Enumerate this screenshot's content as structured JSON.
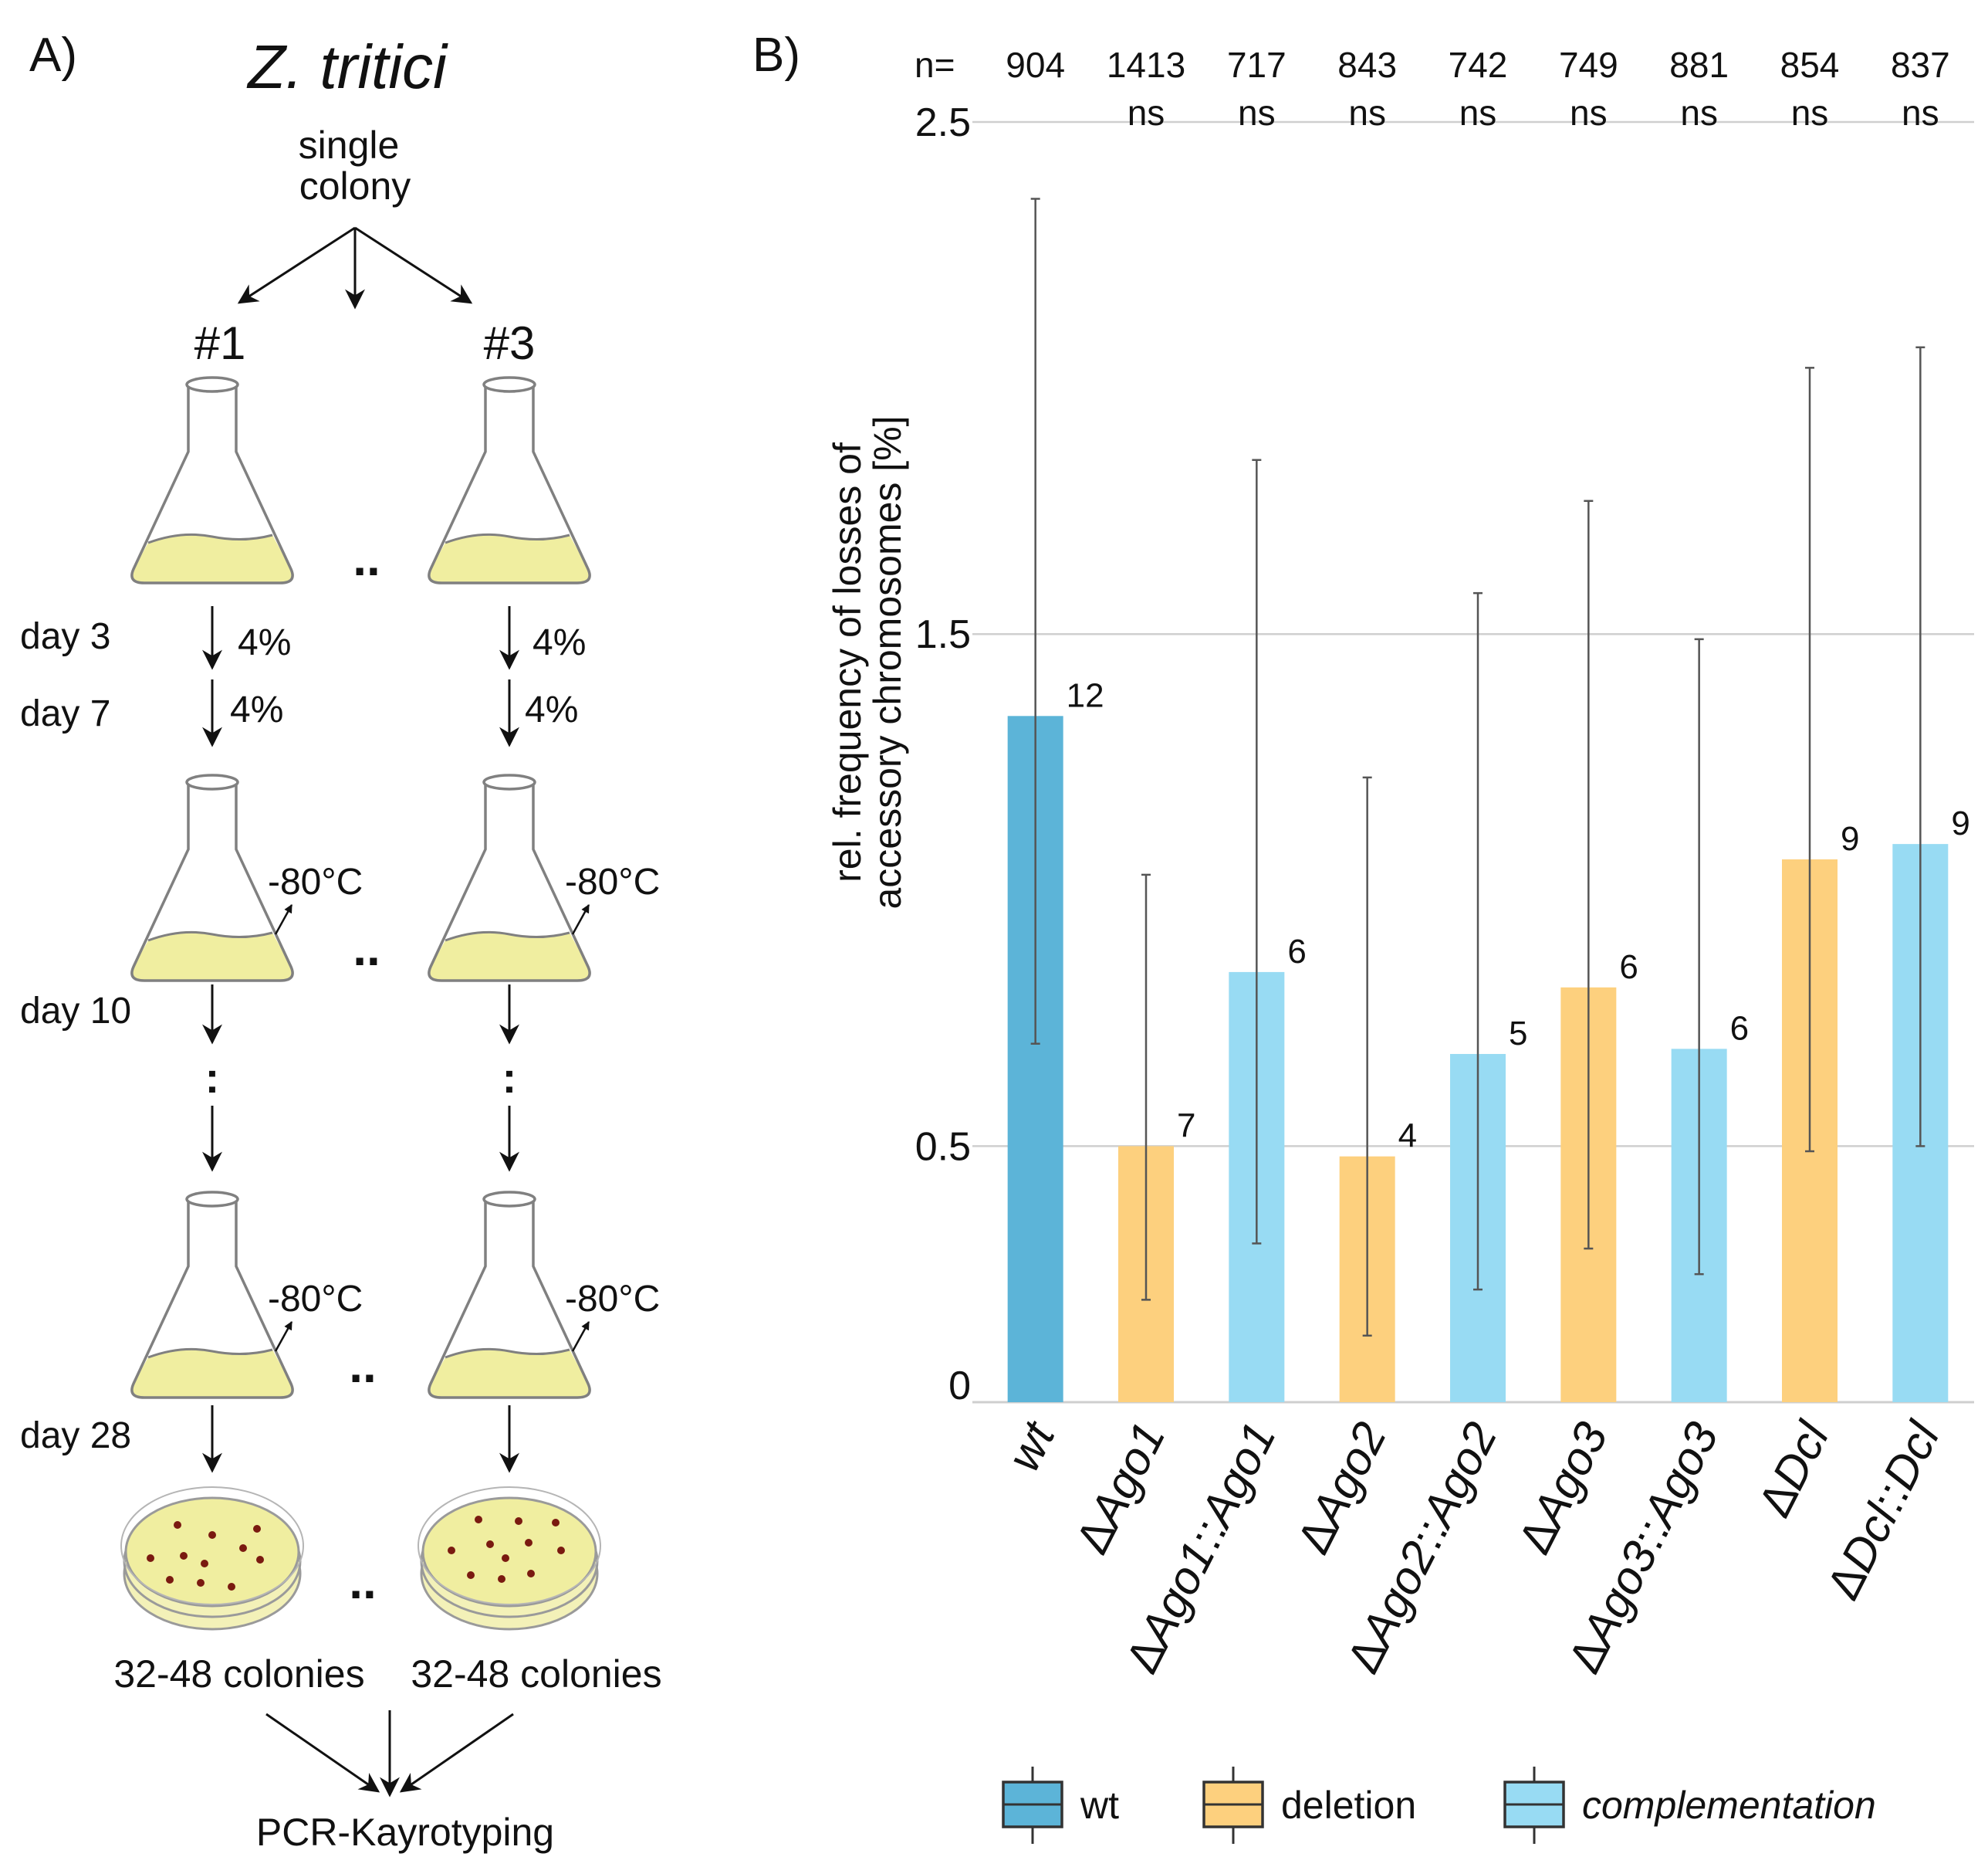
{
  "panel_a": {
    "label": "A)",
    "organism": "Z. tritici",
    "start_line1": "single",
    "start_line2": "colony",
    "replicate_left": "#1",
    "replicate_right": "#3",
    "ellipsis": "..",
    "vertical_ellipsis": ":",
    "days": [
      "day 3",
      "day 7",
      "day 10",
      "day 28"
    ],
    "transfer_pct": "4%",
    "freeze_label": "-80°C",
    "colonies_left": "32-48 colonies",
    "colonies_right": "32-48 colonies",
    "final_step": "PCR-Kayrotyping",
    "colors": {
      "culture": "#f0eea0",
      "colony_dot": "#7a1a10",
      "glass": "#808080"
    }
  },
  "panel_b": {
    "label": "B)",
    "n_prefix": "n="
  },
  "chart_data": {
    "type": "bar",
    "ylabel": "rel. frequency of losses of accessory chromosomes [%]",
    "ylabel_line1": "rel. frequency of losses of",
    "ylabel_line2": "accessory chromosomes [%]",
    "ylim": [
      0,
      2.5
    ],
    "y_tick_labels": [
      "0",
      "0.5",
      "1.5",
      "2.5"
    ],
    "grid": true,
    "categories": [
      "wt",
      "ΔAgo1",
      "ΔAgo1::Ago1",
      "ΔAgo2",
      "ΔAgo2::Ago2",
      "ΔAgo3",
      "ΔAgo3::Ago3",
      "ΔDcl",
      "ΔDcl::Dcl"
    ],
    "groups": [
      "wt",
      "deletion",
      "complementation",
      "deletion",
      "complementation",
      "deletion",
      "complementation",
      "deletion",
      "complementation"
    ],
    "values": [
      1.34,
      0.5,
      0.84,
      0.48,
      0.68,
      0.81,
      0.69,
      1.06,
      1.09
    ],
    "error_low": [
      0.7,
      0.2,
      0.31,
      0.13,
      0.22,
      0.3,
      0.25,
      0.49,
      0.5
    ],
    "error_high": [
      2.35,
      1.03,
      1.84,
      1.22,
      1.58,
      1.76,
      1.49,
      2.02,
      2.06
    ],
    "bar_labels": [
      "12",
      "7",
      "6",
      "4",
      "5",
      "6",
      "6",
      "9",
      "9"
    ],
    "n": [
      "904",
      "1413",
      "717",
      "843",
      "742",
      "749",
      "881",
      "854",
      "837"
    ],
    "significance": [
      "",
      "ns",
      "ns",
      "ns",
      "ns",
      "ns",
      "ns",
      "ns",
      "ns"
    ],
    "legend": [
      {
        "group": "wt",
        "label": "wt",
        "color": "#5cb4d8"
      },
      {
        "group": "deletion",
        "label": "deletion",
        "color": "#fdd07e"
      },
      {
        "group": "complementation",
        "label": "complementation",
        "color": "#98dbf3"
      }
    ],
    "legend_position": "bottom"
  }
}
